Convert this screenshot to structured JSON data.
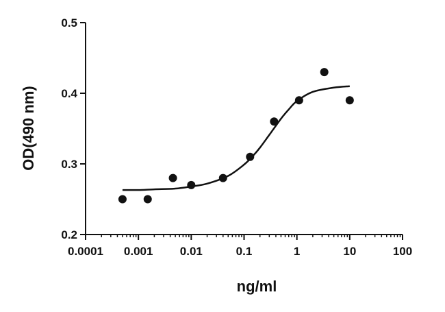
{
  "chart_data": {
    "type": "scatter",
    "title": "",
    "xlabel": "ng/ml",
    "ylabel": "OD(490 nm)",
    "xscale": "log",
    "xlim": [
      0.0001,
      100
    ],
    "ylim": [
      0.2,
      0.5
    ],
    "x_ticks": [
      0.0001,
      0.001,
      0.01,
      0.1,
      1,
      10,
      100
    ],
    "x_tick_labels": [
      "0.0001",
      "0.001",
      "0.01",
      "0.1",
      "1",
      "10",
      "100"
    ],
    "y_ticks": [
      0.2,
      0.3,
      0.4,
      0.5
    ],
    "y_tick_labels": [
      "0.2",
      "0.3",
      "0.4",
      "0.5"
    ],
    "grid": false,
    "series": [
      {
        "kind": "points",
        "x": [
          0.0005,
          0.0015,
          0.0045,
          0.01,
          0.04,
          0.13,
          0.37,
          1.1,
          3.3,
          10
        ],
        "y": [
          0.25,
          0.25,
          0.28,
          0.27,
          0.28,
          0.31,
          0.36,
          0.39,
          0.43,
          0.39
        ]
      },
      {
        "kind": "fit-curve",
        "x": [
          0.0005,
          0.001,
          0.002,
          0.005,
          0.01,
          0.02,
          0.05,
          0.1,
          0.15,
          0.2,
          0.3,
          0.5,
          0.7,
          1,
          2,
          5,
          10
        ],
        "y": [
          0.263,
          0.263,
          0.264,
          0.265,
          0.268,
          0.272,
          0.283,
          0.299,
          0.312,
          0.323,
          0.341,
          0.364,
          0.377,
          0.389,
          0.402,
          0.408,
          0.41
        ]
      }
    ]
  }
}
